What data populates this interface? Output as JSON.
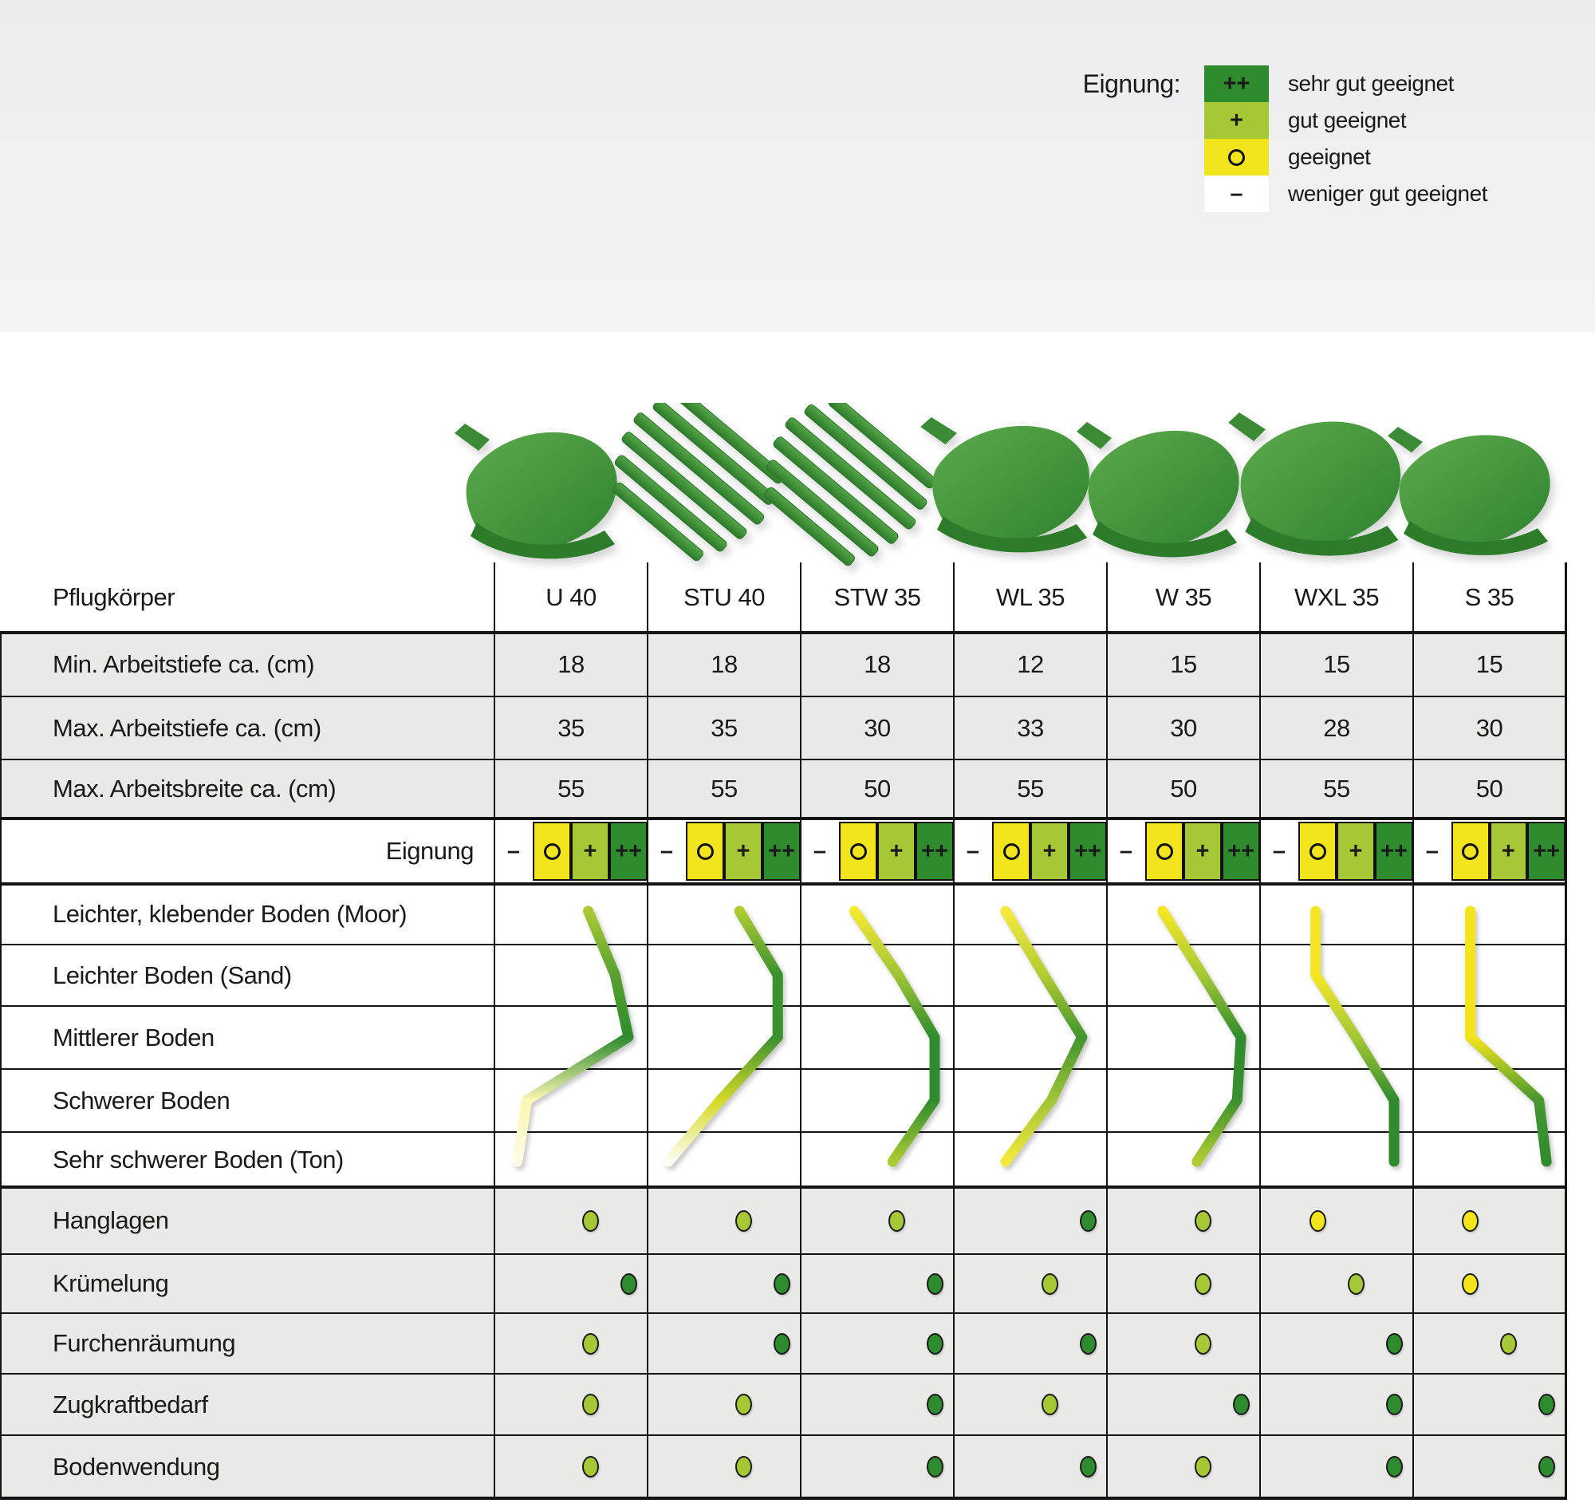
{
  "legend": {
    "title": "Eignung:",
    "items": [
      {
        "symbol": "++",
        "label": "sehr gut geeignet",
        "color": "#2e8b2e"
      },
      {
        "symbol": "+",
        "label": "gut geeignet",
        "color": "#a6c836"
      },
      {
        "symbol": "o",
        "label": "geeignet",
        "color": "#f3e51c"
      },
      {
        "symbol": "–",
        "label": "weniger gut geeignet",
        "color": "#ffffff"
      }
    ]
  },
  "table": {
    "header_label": "Pflugkörper",
    "models": [
      "U 40",
      "STU 40",
      "STW 35",
      "WL 35",
      "W 35",
      "WXL 35",
      "S 35"
    ],
    "spec_rows": [
      {
        "label": "Min. Arbeitstiefe ca. (cm)",
        "values": [
          "18",
          "18",
          "18",
          "12",
          "15",
          "15",
          "15"
        ]
      },
      {
        "label": "Max. Arbeitstiefe ca. (cm)",
        "values": [
          "35",
          "35",
          "30",
          "33",
          "30",
          "28",
          "30"
        ]
      },
      {
        "label": "Max. Arbeitsbreite ca. (cm)",
        "values": [
          "55",
          "55",
          "50",
          "55",
          "50",
          "55",
          "50"
        ]
      }
    ],
    "eignung_label": "Eignung",
    "rating_scale": [
      {
        "symbol": "–",
        "key": "minus",
        "color": "#ffffff"
      },
      {
        "symbol": "o",
        "key": "o",
        "color": "#f3e51c"
      },
      {
        "symbol": "+",
        "key": "plus",
        "color": "#a6c836"
      },
      {
        "symbol": "++",
        "key": "plusplus",
        "color": "#2e8b2e"
      }
    ],
    "soil_rows": [
      {
        "label": "Leichter, klebender Boden (Moor)"
      },
      {
        "label": "Leichter Boden (Sand)"
      },
      {
        "label": "Mittlerer Boden"
      },
      {
        "label": "Schwerer Boden"
      },
      {
        "label": "Sehr schwerer Boden (Ton)"
      }
    ],
    "soil_curves": [
      {
        "model": "U 40",
        "ratings": [
          1.95,
          2.65,
          3.0,
          0.35,
          0.1
        ]
      },
      {
        "model": "STU 40",
        "ratings": [
          1.9,
          2.9,
          2.9,
          1.4,
          0.05
        ]
      },
      {
        "model": "STW 35",
        "ratings": [
          0.9,
          2.05,
          3.0,
          3.0,
          1.9
        ]
      },
      {
        "model": "WL 35",
        "ratings": [
          0.85,
          1.85,
          2.85,
          2.05,
          0.85
        ]
      },
      {
        "model": "W 35",
        "ratings": [
          0.95,
          2.0,
          3.0,
          2.9,
          1.85
        ]
      },
      {
        "model": "WXL 35",
        "ratings": [
          0.95,
          0.95,
          2.0,
          3.0,
          3.0
        ]
      },
      {
        "model": "S 35",
        "ratings": [
          1.0,
          1.0,
          1.0,
          2.8,
          3.0
        ]
      }
    ],
    "trait_rows": [
      {
        "label": "Hanglagen",
        "ratings": [
          "+",
          "+",
          "+",
          "++",
          "+",
          "o",
          "o"
        ]
      },
      {
        "label": "Krümelung",
        "ratings": [
          "++",
          "++",
          "++",
          "+",
          "+",
          "+",
          "o"
        ]
      },
      {
        "label": "Furchenräumung",
        "ratings": [
          "+",
          "++",
          "++",
          "++",
          "+",
          "++",
          "+"
        ]
      },
      {
        "label": "Zugkraftbedarf",
        "ratings": [
          "+",
          "+",
          "++",
          "+",
          "++",
          "++",
          "++"
        ]
      },
      {
        "label": "Bodenwendung",
        "ratings": [
          "+",
          "+",
          "++",
          "++",
          "+",
          "++",
          "++"
        ]
      }
    ]
  },
  "plow_color": "#4a9b43"
}
